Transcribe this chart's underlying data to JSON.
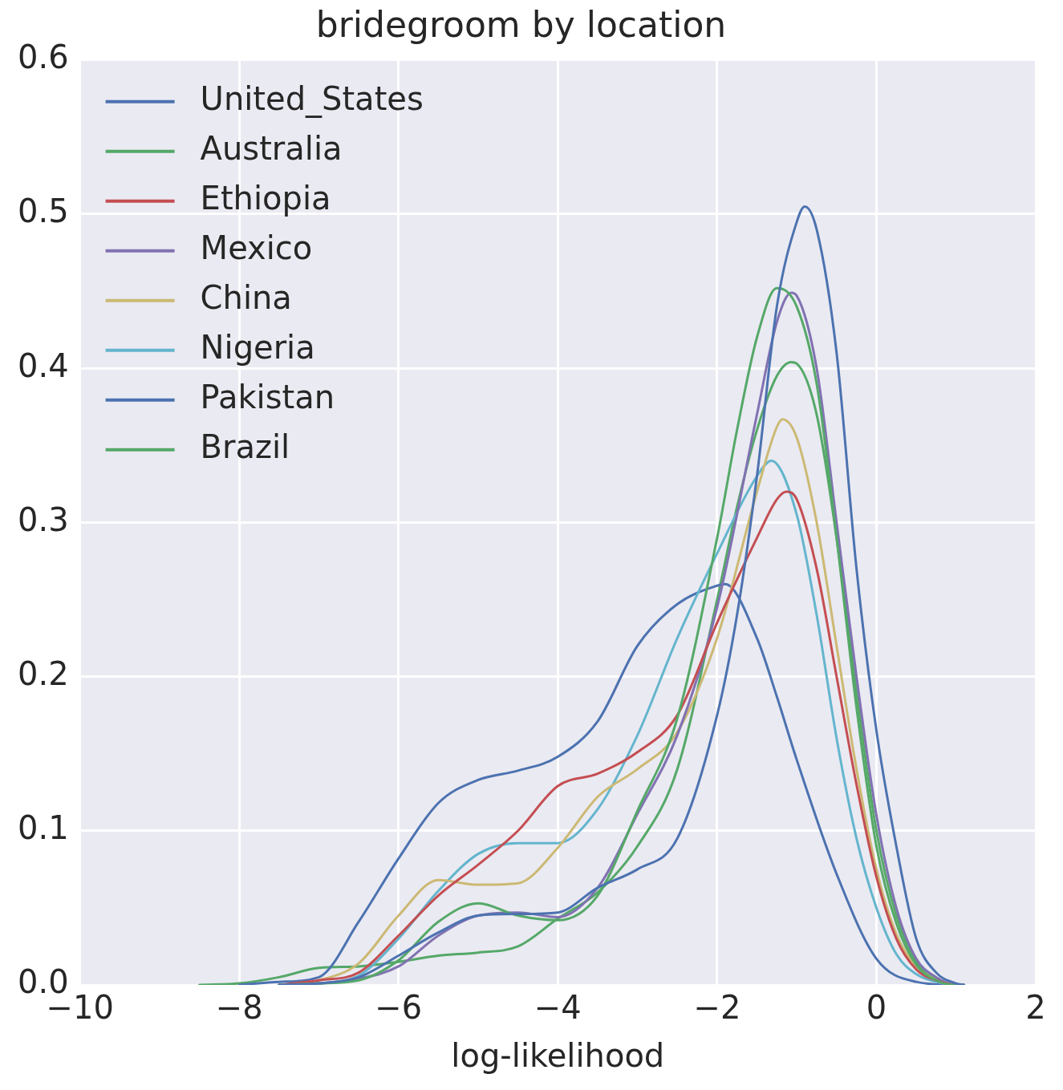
{
  "chart_data": {
    "type": "line",
    "title": "bridegroom by location",
    "xlabel": "log-likelihood",
    "xlim": [
      -10,
      2
    ],
    "xticks": [
      {
        "value": -10,
        "label": "−10"
      },
      {
        "value": -8,
        "label": "−8"
      },
      {
        "value": -6,
        "label": "−6"
      },
      {
        "value": -4,
        "label": "−4"
      },
      {
        "value": -2,
        "label": "−2"
      },
      0,
      2
    ],
    "ylim": [
      0,
      0.6
    ],
    "yticks": [
      {
        "value": 0,
        "label": "0.0"
      },
      0.1,
      0.2,
      0.3,
      0.4,
      0.5,
      0.6
    ],
    "grid": true,
    "legend": "top left",
    "series": [
      {
        "name": "United_States",
        "color": "#4c72b0",
        "x": [
          -7.5,
          -7,
          -6.5,
          -6,
          -5.5,
          -5,
          -4.5,
          -4,
          -3.5,
          -3,
          -2.5,
          -2,
          -1.75,
          -1.5,
          -1.25,
          -1,
          -0.9,
          -0.75,
          -0.5,
          -0.25,
          0,
          0.25,
          0.5,
          0.75,
          1,
          1.1
        ],
        "values": [
          0,
          0.001,
          0.005,
          0.019,
          0.034,
          0.045,
          0.046,
          0.047,
          0.063,
          0.075,
          0.095,
          0.175,
          0.24,
          0.33,
          0.44,
          0.495,
          0.505,
          0.49,
          0.41,
          0.27,
          0.165,
          0.09,
          0.03,
          0.008,
          0.001,
          0
        ]
      },
      {
        "name": "Australia",
        "color": "#55a868",
        "x": [
          -7.5,
          -7,
          -6.5,
          -6,
          -5.5,
          -5,
          -4.5,
          -4,
          -3.5,
          -3,
          -2.5,
          -2,
          -1.75,
          -1.5,
          -1.25,
          -1,
          -0.75,
          -0.5,
          -0.25,
          0,
          0.25,
          0.5,
          0.75,
          1,
          1.1
        ],
        "values": [
          0,
          0.001,
          0.003,
          0.016,
          0.041,
          0.053,
          0.045,
          0.042,
          0.058,
          0.113,
          0.173,
          0.29,
          0.36,
          0.42,
          0.452,
          0.44,
          0.39,
          0.29,
          0.18,
          0.09,
          0.04,
          0.013,
          0.003,
          0,
          0
        ]
      },
      {
        "name": "Ethiopia",
        "color": "#c44e52",
        "x": [
          -7.5,
          -7,
          -6.5,
          -6,
          -5.5,
          -5,
          -4.5,
          -4,
          -3.5,
          -3,
          -2.5,
          -2,
          -1.5,
          -1.25,
          -1.13,
          -1,
          -0.75,
          -0.5,
          -0.25,
          0,
          0.25,
          0.5,
          0.75,
          1,
          1.1
        ],
        "values": [
          0,
          0.003,
          0.008,
          0.032,
          0.058,
          0.078,
          0.1,
          0.129,
          0.137,
          0.151,
          0.175,
          0.235,
          0.29,
          0.315,
          0.32,
          0.315,
          0.27,
          0.2,
          0.13,
          0.07,
          0.03,
          0.01,
          0.003,
          0,
          0
        ]
      },
      {
        "name": "Mexico",
        "color": "#8172b2",
        "x": [
          -7.5,
          -7,
          -6.5,
          -6,
          -5.5,
          -5,
          -4.5,
          -4,
          -3.5,
          -3,
          -2.5,
          -2,
          -1.5,
          -1.25,
          -1.07,
          -1,
          -0.75,
          -0.5,
          -0.25,
          0,
          0.25,
          0.5,
          0.75,
          1,
          1.1
        ],
        "values": [
          0,
          0.001,
          0.004,
          0.012,
          0.032,
          0.045,
          0.047,
          0.044,
          0.063,
          0.111,
          0.162,
          0.245,
          0.37,
          0.43,
          0.449,
          0.447,
          0.4,
          0.3,
          0.2,
          0.11,
          0.05,
          0.017,
          0.005,
          0,
          0
        ]
      },
      {
        "name": "China",
        "color": "#ccb974",
        "x": [
          -7.5,
          -7,
          -6.5,
          -6,
          -5.5,
          -5,
          -4.5,
          -4,
          -3.5,
          -3,
          -2.5,
          -2,
          -1.5,
          -1.25,
          -1.18,
          -1,
          -0.75,
          -0.5,
          -0.25,
          0,
          0.25,
          0.5,
          0.75
        ],
        "values": [
          0,
          0.003,
          0.014,
          0.045,
          0.068,
          0.065,
          0.066,
          0.089,
          0.122,
          0.14,
          0.164,
          0.225,
          0.32,
          0.362,
          0.367,
          0.355,
          0.3,
          0.22,
          0.14,
          0.075,
          0.033,
          0.012,
          0.003
        ]
      },
      {
        "name": "Nigeria",
        "color": "#64b5cd",
        "x": [
          -7.5,
          -7,
          -6.5,
          -6,
          -5.5,
          -5,
          -4.5,
          -4,
          -3.5,
          -3,
          -2.5,
          -2,
          -1.5,
          -1.32,
          -1,
          -0.75,
          -0.5,
          -0.25,
          0,
          0.25,
          0.5,
          0.75,
          1,
          1.1
        ],
        "values": [
          0,
          0.001,
          0.006,
          0.03,
          0.061,
          0.085,
          0.092,
          0.092,
          0.114,
          0.162,
          0.225,
          0.28,
          0.33,
          0.34,
          0.305,
          0.24,
          0.16,
          0.095,
          0.05,
          0.02,
          0.007,
          0.002,
          0,
          0
        ]
      },
      {
        "name": "Pakistan",
        "color": "#4c72b0",
        "x": [
          -8,
          -7.5,
          -7,
          -6.5,
          -6,
          -5.5,
          -5,
          -4.5,
          -4,
          -3.5,
          -3,
          -2.5,
          -2,
          -1.9,
          -1.5,
          -1.25,
          -1,
          -0.5,
          0,
          0.5,
          1,
          1.1
        ],
        "values": [
          0,
          0.002,
          0.005,
          0.041,
          0.082,
          0.118,
          0.133,
          0.139,
          0.148,
          0.171,
          0.22,
          0.247,
          0.259,
          0.26,
          0.225,
          0.187,
          0.146,
          0.072,
          0.017,
          0.002,
          0,
          0
        ]
      },
      {
        "name": "Brazil",
        "color": "#55a868",
        "x": [
          -8.5,
          -8,
          -7.5,
          -7,
          -6.5,
          -6,
          -5.5,
          -5,
          -4.5,
          -4,
          -3.5,
          -3,
          -2.5,
          -2,
          -1.75,
          -1.5,
          -1.25,
          -1.07,
          -1,
          -0.75,
          -0.5,
          -0.25,
          0,
          0.25,
          0.5,
          0.75,
          1,
          1.1
        ],
        "values": [
          0,
          0.001,
          0.005,
          0.011,
          0.012,
          0.015,
          0.019,
          0.021,
          0.025,
          0.043,
          0.06,
          0.09,
          0.14,
          0.25,
          0.31,
          0.36,
          0.395,
          0.404,
          0.403,
          0.37,
          0.29,
          0.19,
          0.1,
          0.045,
          0.015,
          0.004,
          0,
          0
        ]
      }
    ]
  }
}
